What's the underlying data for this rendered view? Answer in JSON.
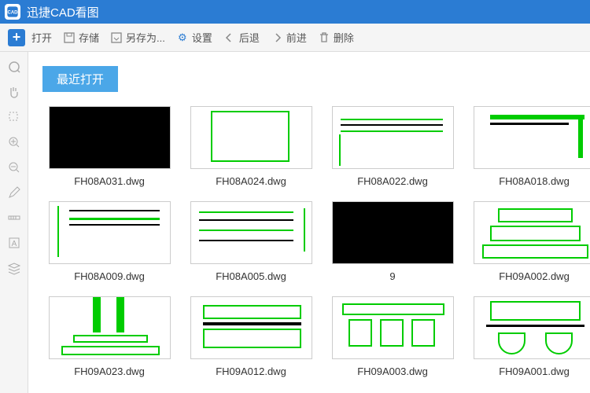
{
  "app": {
    "title": "迅捷CAD看图"
  },
  "toolbar": {
    "open": "打开",
    "save": "存储",
    "saveas": "另存为...",
    "settings": "设置",
    "back": "后退",
    "forward": "前进",
    "delete": "删除"
  },
  "section": {
    "recent_label": "最近打开"
  },
  "files": [
    {
      "name": "FH08A031.dwg",
      "style": "black"
    },
    {
      "name": "FH08A024.dwg",
      "style": "frame"
    },
    {
      "name": "FH08A022.dwg",
      "style": "lines1"
    },
    {
      "name": "FH08A018.dwg",
      "style": "corner"
    },
    {
      "name": "FH08A009.dwg",
      "style": "profile"
    },
    {
      "name": "FH08A005.dwg",
      "style": "hlines"
    },
    {
      "name": "9",
      "style": "black"
    },
    {
      "name": "FH09A002.dwg",
      "style": "base"
    },
    {
      "name": "FH09A023.dwg",
      "style": "column"
    },
    {
      "name": "FH09A012.dwg",
      "style": "ornate1"
    },
    {
      "name": "FH09A003.dwg",
      "style": "ornate2"
    },
    {
      "name": "FH09A001.dwg",
      "style": "ornate3"
    }
  ],
  "colors": {
    "brand": "#2b7cd3",
    "tab": "#4ba7e8",
    "cad_green": "#00cc00"
  }
}
